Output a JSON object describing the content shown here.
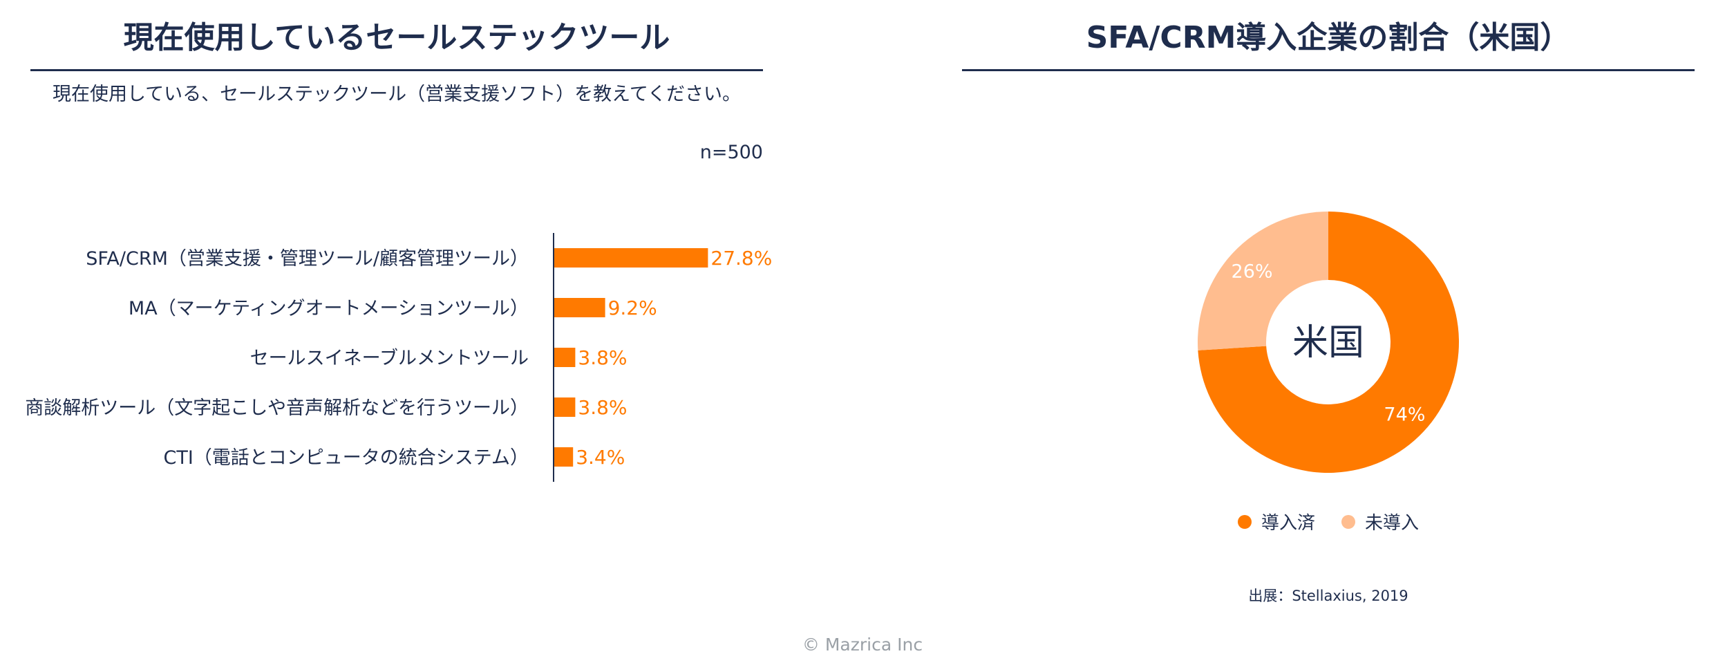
{
  "bar_panel": {
    "title": "現在使用しているセールステックツール",
    "question": "現在使用している、セールステックツール（営業支援ソフト）を教えてください。",
    "sample_size": "n=500"
  },
  "donut_panel": {
    "title": "SFA/CRM導入企業の割合（米国）",
    "source": "出展：Stellaxius, 2019"
  },
  "copyright": "© Mazrica Inc",
  "colors": {
    "primary": "#ff7a00",
    "secondary": "#ffbd8f",
    "text": "#1f2d4d",
    "muted": "#9aa0a6"
  },
  "chart_data": [
    {
      "type": "bar",
      "orientation": "horizontal",
      "title": "現在使用しているセールステックツール",
      "categories": [
        "SFA/CRM（営業支援・管理ツール/顧客管理ツール）",
        "MA（マーケティングオートメーションツール）",
        "セールスイネーブルメントツール",
        "商談解析ツール（文字起こしや音声解析などを行うツール）",
        "CTI（電話とコンピュータの統合システム）"
      ],
      "values": [
        27.8,
        9.2,
        3.8,
        3.8,
        3.4
      ],
      "value_labels": [
        "27.8%",
        "9.2%",
        "3.8%",
        "3.8%",
        "3.4%"
      ],
      "unit": "%",
      "xlim": [
        0,
        100
      ],
      "grid": false
    },
    {
      "type": "pie",
      "style": "donut",
      "title": "SFA/CRM導入企業の割合（米国）",
      "center_label": "米国",
      "categories": [
        "導入済",
        "未導入"
      ],
      "values": [
        74,
        26
      ],
      "value_labels": [
        "74%",
        "26%"
      ],
      "legend": "bottom"
    }
  ]
}
